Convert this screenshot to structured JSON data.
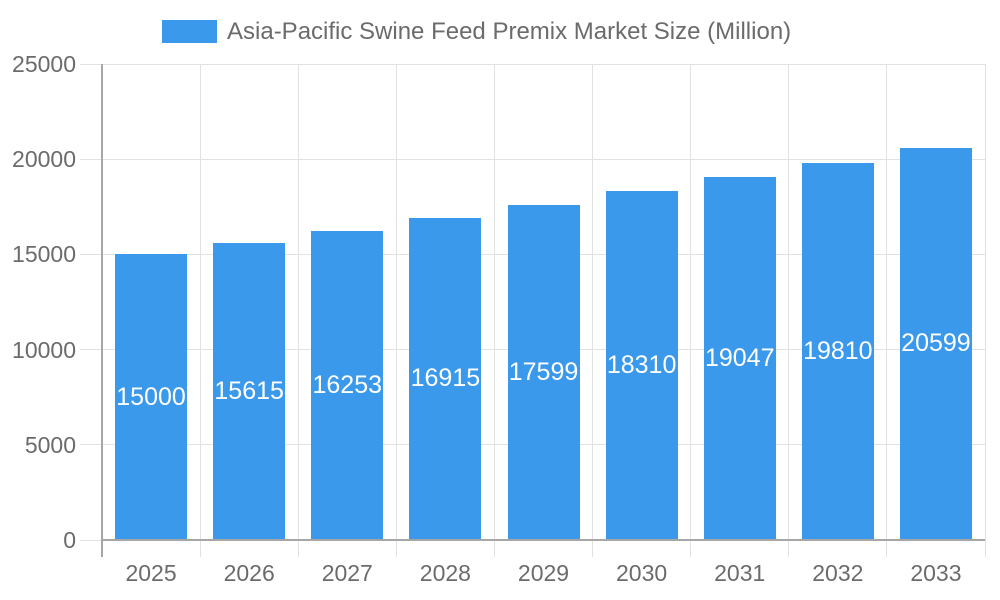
{
  "legend": {
    "label": "Asia-Pacific Swine Feed Premix Market Size (Million)"
  },
  "colors": {
    "bar": "#3b99ec",
    "grid": "#e2e2e2",
    "axis": "#a6a6a6",
    "axis_label": "#6b6b6b",
    "value_label": "#ffffff"
  },
  "chart_data": {
    "type": "bar",
    "title": "Asia-Pacific Swine Feed Premix Market Size (Million)",
    "categories": [
      "2025",
      "2026",
      "2027",
      "2028",
      "2029",
      "2030",
      "2031",
      "2032",
      "2033"
    ],
    "values": [
      15000,
      15615,
      16253,
      16915,
      17599,
      18310,
      19047,
      19810,
      20599
    ],
    "value_labels": [
      "15000",
      "15615",
      "16253",
      "16915",
      "17599",
      "18310",
      "19047",
      "19810",
      "20599"
    ],
    "xlabel": "",
    "ylabel": "",
    "ylim": [
      0,
      25000
    ],
    "yticks": [
      0,
      5000,
      10000,
      15000,
      20000,
      25000
    ],
    "ytick_labels": [
      "0",
      "5000",
      "10000",
      "15000",
      "20000",
      "25000"
    ],
    "grid": true,
    "legend_position": "top-center",
    "value_label_position": "inside-center"
  }
}
